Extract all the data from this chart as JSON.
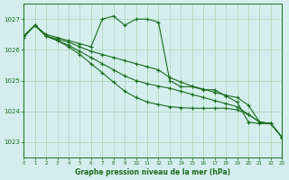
{
  "background_color": "#d4eeee",
  "grid_color": "#a8d4b0",
  "line_color": "#1a6b1a",
  "title": "Graphe pression niveau de la mer (hPa)",
  "xlim": [
    0,
    23
  ],
  "ylim": [
    1022.5,
    1027.5
  ],
  "yticks": [
    1023,
    1024,
    1025,
    1026,
    1027
  ],
  "xticks": [
    0,
    1,
    2,
    3,
    4,
    5,
    6,
    7,
    8,
    9,
    10,
    11,
    12,
    13,
    14,
    15,
    16,
    17,
    18,
    19,
    20,
    21,
    22,
    23
  ],
  "x_hours": [
    0,
    1,
    2,
    3,
    4,
    5,
    6,
    7,
    8,
    9,
    10,
    11,
    12,
    13,
    14,
    15,
    16,
    17,
    18,
    19,
    20,
    21,
    22,
    23
  ],
  "line1": [
    1026.4,
    1026.8,
    1026.5,
    1026.4,
    1026.3,
    1026.2,
    1026.1,
    1027.0,
    1027.1,
    1026.8,
    1027.0,
    1027.0,
    1026.9,
    1025.0,
    1024.8,
    1024.8,
    1024.7,
    1024.7,
    1024.5,
    1024.3,
    1023.65,
    1023.6,
    1023.6,
    1023.15
  ],
  "line2": [
    1026.45,
    1026.8,
    1026.45,
    1026.35,
    1026.25,
    1026.1,
    1025.95,
    1025.85,
    1025.75,
    1025.65,
    1025.55,
    1025.45,
    1025.35,
    1025.1,
    1024.95,
    1024.82,
    1024.72,
    1024.62,
    1024.52,
    1024.45,
    1024.2,
    1023.65,
    1023.6,
    1023.15
  ],
  "line3": [
    1026.45,
    1026.8,
    1026.45,
    1026.3,
    1026.15,
    1025.95,
    1025.75,
    1025.55,
    1025.35,
    1025.15,
    1025.0,
    1024.9,
    1024.82,
    1024.75,
    1024.65,
    1024.55,
    1024.45,
    1024.35,
    1024.25,
    1024.15,
    1023.9,
    1023.65,
    1023.6,
    1023.15
  ],
  "line4": [
    1026.45,
    1026.8,
    1026.45,
    1026.3,
    1026.1,
    1025.85,
    1025.55,
    1025.25,
    1024.95,
    1024.65,
    1024.45,
    1024.3,
    1024.22,
    1024.15,
    1024.12,
    1024.1,
    1024.1,
    1024.1,
    1024.1,
    1024.05,
    1023.9,
    1023.65,
    1023.6,
    1023.15
  ]
}
